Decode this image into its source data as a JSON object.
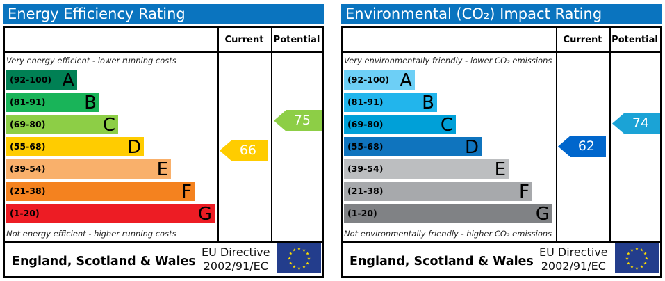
{
  "panels": [
    {
      "id": "energy",
      "title": "Energy Efficiency Rating",
      "current_label": "Current",
      "potential_label": "Potential",
      "top_note": "Very energy efficient - lower running costs",
      "bottom_note": "Not energy efficient - higher running costs",
      "bands": [
        {
          "range": "(92-100)",
          "letter": "A",
          "color": "#008054"
        },
        {
          "range": "(81-91)",
          "letter": "B",
          "color": "#19b459"
        },
        {
          "range": "(69-80)",
          "letter": "C",
          "color": "#8dce46"
        },
        {
          "range": "(55-68)",
          "letter": "D",
          "color": "#ffcc00"
        },
        {
          "range": "(39-54)",
          "letter": "E",
          "color": "#f9b06b"
        },
        {
          "range": "(21-38)",
          "letter": "F",
          "color": "#f4821f"
        },
        {
          "range": "(1-20)",
          "letter": "G",
          "color": "#ed1c24"
        }
      ],
      "current": {
        "value": "66",
        "band": "D",
        "color": "#ffcc00"
      },
      "potential": {
        "value": "75",
        "band": "C",
        "color": "#8dce46"
      },
      "footer_region": "England, Scotland & Wales",
      "footer_directive_1": "EU Directive",
      "footer_directive_2": "2002/91/EC"
    },
    {
      "id": "environmental",
      "title": "Environmental (CO₂) Impact Rating",
      "current_label": "Current",
      "potential_label": "Potential",
      "top_note": "Very environmentally friendly - lower CO₂ emissions",
      "bottom_note": "Not environmentally friendly - higher CO₂ emissions",
      "bands": [
        {
          "range": "(92-100)",
          "letter": "A",
          "color": "#6dcff6"
        },
        {
          "range": "(81-91)",
          "letter": "B",
          "color": "#22b5ec"
        },
        {
          "range": "(69-80)",
          "letter": "C",
          "color": "#00a0d8"
        },
        {
          "range": "(55-68)",
          "letter": "D",
          "color": "#0f74be"
        },
        {
          "range": "(39-54)",
          "letter": "E",
          "color": "#bcbec0"
        },
        {
          "range": "(21-38)",
          "letter": "F",
          "color": "#a7a9ac"
        },
        {
          "range": "(1-20)",
          "letter": "G",
          "color": "#808285"
        }
      ],
      "current": {
        "value": "62",
        "band": "D",
        "color": "#0066cc"
      },
      "potential": {
        "value": "74",
        "band": "C",
        "color": "#1ba3d6"
      },
      "footer_region": "England, Scotland & Wales",
      "footer_directive_1": "EU Directive",
      "footer_directive_2": "2002/91/EC"
    }
  ],
  "chart_data": [
    {
      "type": "bar",
      "title": "Energy Efficiency Rating",
      "categories": [
        "A",
        "B",
        "C",
        "D",
        "E",
        "F",
        "G"
      ],
      "ranges": [
        "92-100",
        "81-91",
        "69-80",
        "55-68",
        "39-54",
        "21-38",
        "1-20"
      ],
      "current": 66,
      "potential": 75
    },
    {
      "type": "bar",
      "title": "Environmental (CO₂) Impact Rating",
      "categories": [
        "A",
        "B",
        "C",
        "D",
        "E",
        "F",
        "G"
      ],
      "ranges": [
        "92-100",
        "81-91",
        "69-80",
        "55-68",
        "39-54",
        "21-38",
        "1-20"
      ],
      "current": 62,
      "potential": 74
    }
  ]
}
